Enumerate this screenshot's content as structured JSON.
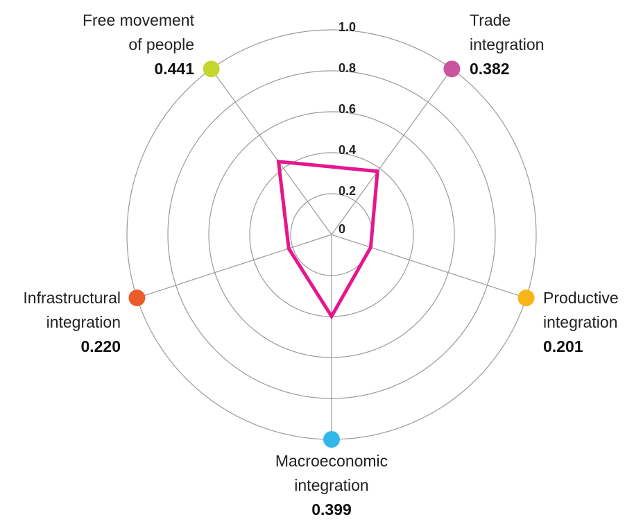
{
  "chart_data": {
    "type": "radar",
    "categories": [
      "Trade\nintegration",
      "Productive\nintegration",
      "Macroeconomic\nintegration",
      "Infrastructural\nintegration",
      "Free movement\nof people"
    ],
    "values": [
      0.382,
      0.201,
      0.399,
      0.22,
      0.441
    ],
    "value_labels": [
      "0.382",
      "0.201",
      "0.399",
      "0.220",
      "0.441"
    ],
    "color": "#e6168c",
    "category_colors": [
      "#c9559f",
      "#f8b418",
      "#31b8ea",
      "#ee5b2b",
      "#c5d62f"
    ],
    "ylim": [
      0,
      1
    ],
    "yticks": [
      0,
      0.2,
      0.4,
      0.6,
      0.8,
      {
        "value": 1,
        "label": "1.0"
      }
    ],
    "grid": true
  }
}
